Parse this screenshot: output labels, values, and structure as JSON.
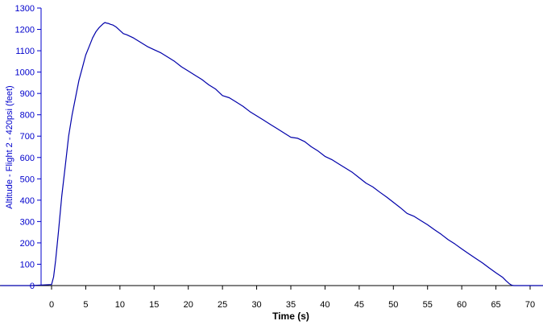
{
  "chart_data": {
    "type": "line",
    "title": "",
    "xlabel": "Time (s)",
    "ylabel": "Altitude - Flight 2 - 420psi (feet)",
    "xlim": [
      -7.5,
      72
    ],
    "ylim": [
      0,
      1300
    ],
    "x_ticks": [
      "0",
      "5",
      "10",
      "15",
      "20",
      "25",
      "30",
      "35",
      "40",
      "45",
      "50",
      "55",
      "60",
      "65",
      "70"
    ],
    "y_ticks": [
      "0",
      "100",
      "200",
      "300",
      "400",
      "500",
      "600",
      "700",
      "800",
      "900",
      "1000",
      "1100",
      "1200",
      "1300"
    ],
    "grid": false,
    "legend": "none",
    "y_axis_color": "#0000cc",
    "series": [
      {
        "color": "#0000aa",
        "x": [
          -7.5,
          -3,
          0,
          0.3,
          0.6,
          1.0,
          1.5,
          2.0,
          2.5,
          3.0,
          3.5,
          4.0,
          4.5,
          5.0,
          5.5,
          6.0,
          6.5,
          7.0,
          7.5,
          7.8,
          8.0,
          8.3,
          8.6,
          9.0,
          9.5,
          10.0,
          10.5,
          11.0,
          12.0,
          13.0,
          14.0,
          15.0,
          16.0,
          17.0,
          18.0,
          19.0,
          20.0,
          21.0,
          22.0,
          23.0,
          24.0,
          25.0,
          26.0,
          27.0,
          28.0,
          29.0,
          30.0,
          31.0,
          32.0,
          33.0,
          34.0,
          35.0,
          36.0,
          37.0,
          38.0,
          39.0,
          40.0,
          41.0,
          42.0,
          43.0,
          44.0,
          45.0,
          46.0,
          47.0,
          48.0,
          49.0,
          50.0,
          51.0,
          52.0,
          53.0,
          54.0,
          55.0,
          56.0,
          57.0,
          58.0,
          59.0,
          60.0,
          61.0,
          62.0,
          63.0,
          64.0,
          65.0,
          66.0,
          66.5,
          67.0,
          67.3,
          67.6,
          68.0,
          69.0,
          70.0,
          71.0,
          72.0
        ],
        "y": [
          0,
          0,
          5,
          40,
          120,
          250,
          420,
          560,
          700,
          800,
          880,
          960,
          1020,
          1080,
          1120,
          1160,
          1190,
          1210,
          1225,
          1232,
          1230,
          1228,
          1224,
          1220,
          1210,
          1195,
          1180,
          1175,
          1160,
          1140,
          1120,
          1105,
          1090,
          1070,
          1050,
          1025,
          1005,
          985,
          965,
          940,
          920,
          890,
          880,
          860,
          840,
          815,
          795,
          775,
          755,
          735,
          715,
          695,
          690,
          675,
          650,
          630,
          605,
          590,
          570,
          550,
          530,
          505,
          480,
          462,
          438,
          415,
          390,
          365,
          338,
          325,
          305,
          285,
          262,
          240,
          215,
          195,
          172,
          150,
          128,
          107,
          83,
          60,
          38,
          22,
          8,
          2,
          0,
          0,
          0,
          0,
          0,
          0
        ]
      }
    ]
  }
}
